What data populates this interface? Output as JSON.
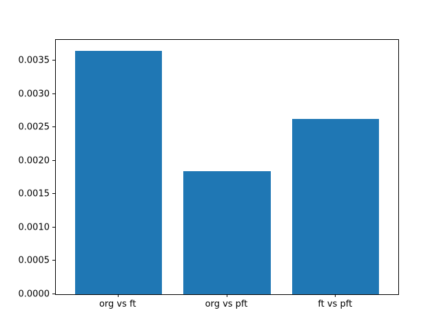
{
  "chart_data": {
    "type": "bar",
    "categories": [
      "org vs ft",
      "org vs pft",
      "ft vs pft"
    ],
    "values": [
      0.00365,
      0.00184,
      0.00263
    ],
    "title": "",
    "xlabel": "",
    "ylabel": "",
    "ylim": [
      0,
      0.00381
    ],
    "yticks": [
      0.0,
      0.0005,
      0.001,
      0.0015,
      0.002,
      0.0025,
      0.003,
      0.0035
    ],
    "ytick_labels": [
      "0.0000",
      "0.0005",
      "0.0010",
      "0.0015",
      "0.0020",
      "0.0025",
      "0.0030",
      "0.0035"
    ],
    "bar_color": "#1f77b4",
    "background_color": "#ffffff",
    "grid": false,
    "legend": false,
    "bar_width_fraction": 0.8,
    "x_data_span": 3.15,
    "x_left_pad": 0.575
  }
}
